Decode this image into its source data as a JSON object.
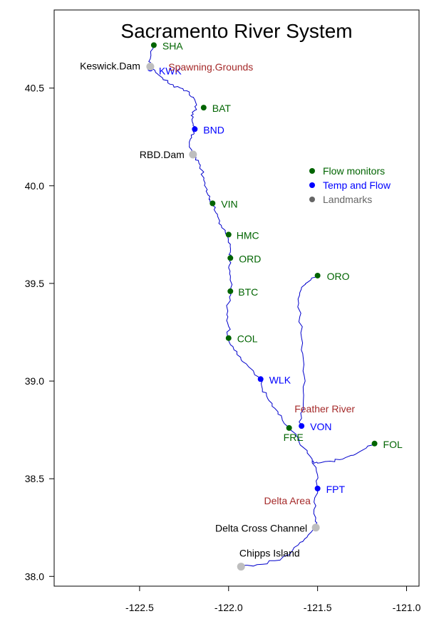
{
  "title": "Sacramento River System",
  "colors": {
    "flow": "#006400",
    "temp_flow": "#0000FF",
    "landmark": "#BEBEBE",
    "region": "#A52A2A",
    "river": "#0000CC"
  },
  "axes": {
    "x_ticks": [
      {
        "value": -122.5,
        "label": "-122.5"
      },
      {
        "value": -122.0,
        "label": "-122.0"
      },
      {
        "value": -121.5,
        "label": "-121.5"
      },
      {
        "value": -121.0,
        "label": "-121.0"
      }
    ],
    "y_ticks": [
      {
        "value": 38.0,
        "label": "38.0"
      },
      {
        "value": 38.5,
        "label": "38.5"
      },
      {
        "value": 39.0,
        "label": "39.0"
      },
      {
        "value": 39.5,
        "label": "39.5"
      },
      {
        "value": 40.0,
        "label": "40.0"
      },
      {
        "value": 40.5,
        "label": "40.5"
      }
    ],
    "xlim": [
      -122.98,
      -120.93
    ],
    "ylim": [
      37.95,
      40.9
    ]
  },
  "legend": {
    "placement": "right",
    "items": [
      {
        "label": "Flow monitors",
        "kind": "flow"
      },
      {
        "label": "Temp and Flow",
        "kind": "temp_flow"
      },
      {
        "label": "Landmarks",
        "kind": "landmark"
      }
    ]
  },
  "chart_data": {
    "type": "scatter",
    "title": "Sacramento River System",
    "xlim": [
      -122.98,
      -120.93
    ],
    "ylim": [
      37.95,
      40.9
    ],
    "series": [
      {
        "name": "Flow monitors",
        "points": [
          {
            "label": "SHA",
            "x": -122.42,
            "y": 40.72
          },
          {
            "label": "BAT",
            "x": -122.14,
            "y": 40.4
          },
          {
            "label": "VIN",
            "x": -122.09,
            "y": 39.91
          },
          {
            "label": "HMC",
            "x": -122.0,
            "y": 39.75
          },
          {
            "label": "ORD",
            "x": -121.99,
            "y": 39.63
          },
          {
            "label": "BTC",
            "x": -121.99,
            "y": 39.46
          },
          {
            "label": "COL",
            "x": -122.0,
            "y": 39.22
          },
          {
            "label": "FRE",
            "x": -121.66,
            "y": 38.76
          },
          {
            "label": "ORO",
            "x": -121.5,
            "y": 39.54
          },
          {
            "label": "FOL",
            "x": -121.18,
            "y": 38.68
          }
        ]
      },
      {
        "name": "Temp and Flow",
        "points": [
          {
            "label": "KWK",
            "x": -122.44,
            "y": 40.6
          },
          {
            "label": "BND",
            "x": -122.19,
            "y": 40.29
          },
          {
            "label": "WLK",
            "x": -121.82,
            "y": 39.01
          },
          {
            "label": "VON",
            "x": -121.59,
            "y": 38.77
          },
          {
            "label": "FPT",
            "x": -121.5,
            "y": 38.45
          }
        ]
      },
      {
        "name": "Landmarks",
        "points": [
          {
            "label": "Keswick.Dam",
            "x": -122.44,
            "y": 40.61
          },
          {
            "label": "RBD.Dam",
            "x": -122.2,
            "y": 40.16
          },
          {
            "label": "Delta Cross Channel",
            "x": -121.51,
            "y": 38.25
          },
          {
            "label": "Chipps Island",
            "x": -121.93,
            "y": 38.05
          }
        ]
      }
    ],
    "annotations": [
      {
        "text": "Spawning.Grounds",
        "x": -122.1,
        "y": 40.59
      },
      {
        "text": "Feather River",
        "x": -121.46,
        "y": 38.84
      },
      {
        "text": "Delta Area",
        "x": -121.67,
        "y": 38.37
      }
    ]
  },
  "rivers": {
    "sacramento": [
      [
        -122.42,
        40.72
      ],
      [
        -122.44,
        40.65
      ],
      [
        -122.44,
        40.61
      ],
      [
        -122.41,
        40.58
      ],
      [
        -122.37,
        40.55
      ],
      [
        -122.33,
        40.52
      ],
      [
        -122.27,
        40.5
      ],
      [
        -122.22,
        40.48
      ],
      [
        -122.19,
        40.44
      ],
      [
        -122.18,
        40.39
      ],
      [
        -122.21,
        40.36
      ],
      [
        -122.2,
        40.32
      ],
      [
        -122.19,
        40.29
      ],
      [
        -122.21,
        40.26
      ],
      [
        -122.22,
        40.21
      ],
      [
        -122.2,
        40.16
      ],
      [
        -122.17,
        40.13
      ],
      [
        -122.15,
        40.08
      ],
      [
        -122.14,
        40.03
      ],
      [
        -122.12,
        39.98
      ],
      [
        -122.11,
        39.93
      ],
      [
        -122.09,
        39.91
      ],
      [
        -122.07,
        39.86
      ],
      [
        -122.05,
        39.82
      ],
      [
        -122.03,
        39.78
      ],
      [
        -122.0,
        39.75
      ],
      [
        -121.99,
        39.7
      ],
      [
        -121.99,
        39.66
      ],
      [
        -121.99,
        39.63
      ],
      [
        -122.0,
        39.58
      ],
      [
        -121.99,
        39.53
      ],
      [
        -121.99,
        39.46
      ],
      [
        -122.0,
        39.4
      ],
      [
        -122.01,
        39.34
      ],
      [
        -122.0,
        39.28
      ],
      [
        -122.0,
        39.22
      ],
      [
        -121.97,
        39.16
      ],
      [
        -121.93,
        39.11
      ],
      [
        -121.87,
        39.06
      ],
      [
        -121.82,
        39.01
      ],
      [
        -121.81,
        38.96
      ],
      [
        -121.78,
        38.91
      ],
      [
        -121.74,
        38.86
      ],
      [
        -121.7,
        38.81
      ],
      [
        -121.66,
        38.76
      ],
      [
        -121.62,
        38.72
      ],
      [
        -121.58,
        38.66
      ],
      [
        -121.53,
        38.6
      ],
      [
        -121.5,
        38.52
      ],
      [
        -121.5,
        38.45
      ],
      [
        -121.52,
        38.38
      ],
      [
        -121.51,
        38.3
      ],
      [
        -121.51,
        38.25
      ],
      [
        -121.56,
        38.2
      ],
      [
        -121.61,
        38.16
      ],
      [
        -121.66,
        38.11
      ],
      [
        -121.74,
        38.08
      ],
      [
        -121.84,
        38.06
      ],
      [
        -121.93,
        38.05
      ]
    ],
    "feather": [
      [
        -121.5,
        39.54
      ],
      [
        -121.55,
        39.51
      ],
      [
        -121.59,
        39.48
      ],
      [
        -121.61,
        39.42
      ],
      [
        -121.6,
        39.33
      ],
      [
        -121.59,
        39.22
      ],
      [
        -121.58,
        39.11
      ],
      [
        -121.57,
        39.0
      ],
      [
        -121.58,
        38.9
      ],
      [
        -121.59,
        38.81
      ],
      [
        -121.6,
        38.77
      ]
    ],
    "american": [
      [
        -121.18,
        38.68
      ],
      [
        -121.24,
        38.65
      ],
      [
        -121.3,
        38.62
      ],
      [
        -121.36,
        38.6
      ],
      [
        -121.43,
        38.59
      ],
      [
        -121.5,
        38.58
      ],
      [
        -121.53,
        38.59
      ]
    ]
  }
}
